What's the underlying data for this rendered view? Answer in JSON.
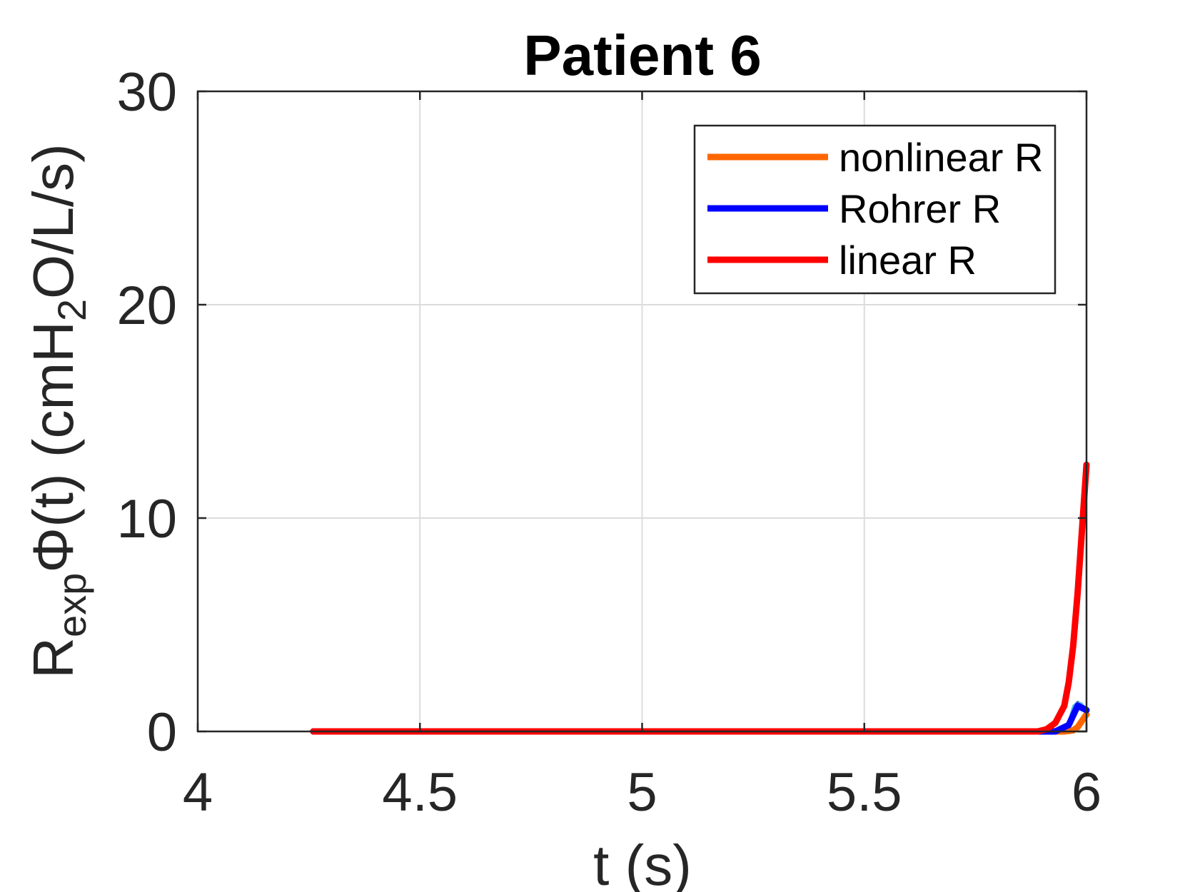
{
  "chart_data": {
    "type": "line",
    "title": "Patient 6",
    "xlabel": "t (s)",
    "ylabel": {
      "base": "R",
      "base_sub": "exp",
      "phi": "Φ(t) (cmH",
      "sub": "2",
      "rest": "O/L/s)"
    },
    "xlim": [
      4,
      6
    ],
    "ylim": [
      0,
      30
    ],
    "x_ticks": [
      4,
      4.5,
      5,
      5.5,
      6
    ],
    "x_tick_labels": [
      "4",
      "4.5",
      "5",
      "5.5",
      "6"
    ],
    "y_ticks": [
      0,
      10,
      20,
      30
    ],
    "y_tick_labels": [
      "0",
      "10",
      "20",
      "30"
    ],
    "grid": true,
    "legend_position": "top-right",
    "series": [
      {
        "name": "nonlinear R",
        "color": "#ff6600",
        "x": [
          4.26,
          5.9,
          5.95,
          5.97,
          5.98,
          6.0
        ],
        "y": [
          0,
          0,
          0,
          0.05,
          0.2,
          0.8
        ]
      },
      {
        "name": "Rohrer R",
        "color": "#0000ff",
        "x": [
          4.26,
          5.93,
          5.96,
          5.98,
          6.0
        ],
        "y": [
          0,
          0,
          0.3,
          1.2,
          1.0
        ]
      },
      {
        "name": "linear R",
        "color": "#ff0000",
        "x": [
          4.26,
          5.89,
          5.91,
          5.93,
          5.95,
          5.96,
          5.97,
          5.98,
          5.99,
          6.0
        ],
        "y": [
          0,
          0,
          0.1,
          0.4,
          1.2,
          2.3,
          4.0,
          6.5,
          9.5,
          12.5
        ]
      }
    ],
    "minor_traces": [
      {
        "color": "#4db8e8",
        "x": [
          5.96,
          5.97,
          5.98,
          5.99,
          6.0
        ],
        "y": [
          0.5,
          1.2,
          1.4,
          1.3,
          1.0
        ]
      },
      {
        "color": "#7e2f8e",
        "x": [
          5.95,
          5.96,
          5.97,
          5.98
        ],
        "y": [
          0,
          0.2,
          0.8,
          1.4
        ]
      },
      {
        "color": "#77ac30",
        "x": [
          5.92,
          6.0
        ],
        "y": [
          0,
          0
        ]
      }
    ]
  }
}
